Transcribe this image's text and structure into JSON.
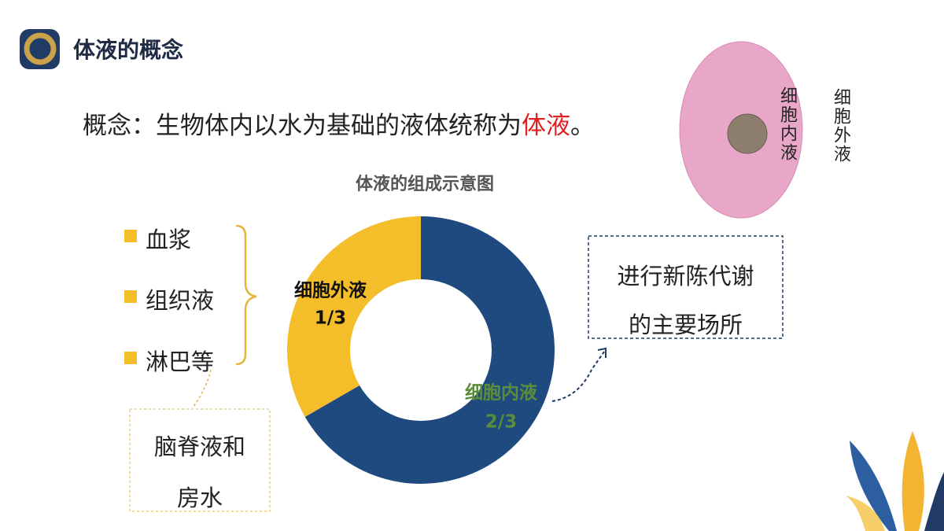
{
  "header": {
    "title": "体液的概念"
  },
  "concept": {
    "text": "概念：生物体内以水为基础的液体统称为",
    "highlight": "体液",
    "end": "。"
  },
  "cell_diagram": {
    "inner_label": "细胞内液",
    "outer_label": "细胞外液"
  },
  "extracellular_components": [
    "血浆",
    "组织液",
    "淋巴等"
  ],
  "other_fluids": [
    "脑脊液和",
    "房水"
  ],
  "note": [
    "进行新陈代谢",
    "的主要场所"
  ],
  "chart_data": {
    "type": "donut",
    "title": "体液的组成示意图",
    "categories": [
      "细胞外液",
      "细胞内液"
    ],
    "values": [
      0.3333,
      0.6667
    ],
    "value_labels": [
      "1/3",
      "2/3"
    ],
    "colors": [
      "#f4bd2a",
      "#1f4a7f"
    ],
    "label_colors": [
      "#111111",
      "#5b8c3a"
    ]
  }
}
